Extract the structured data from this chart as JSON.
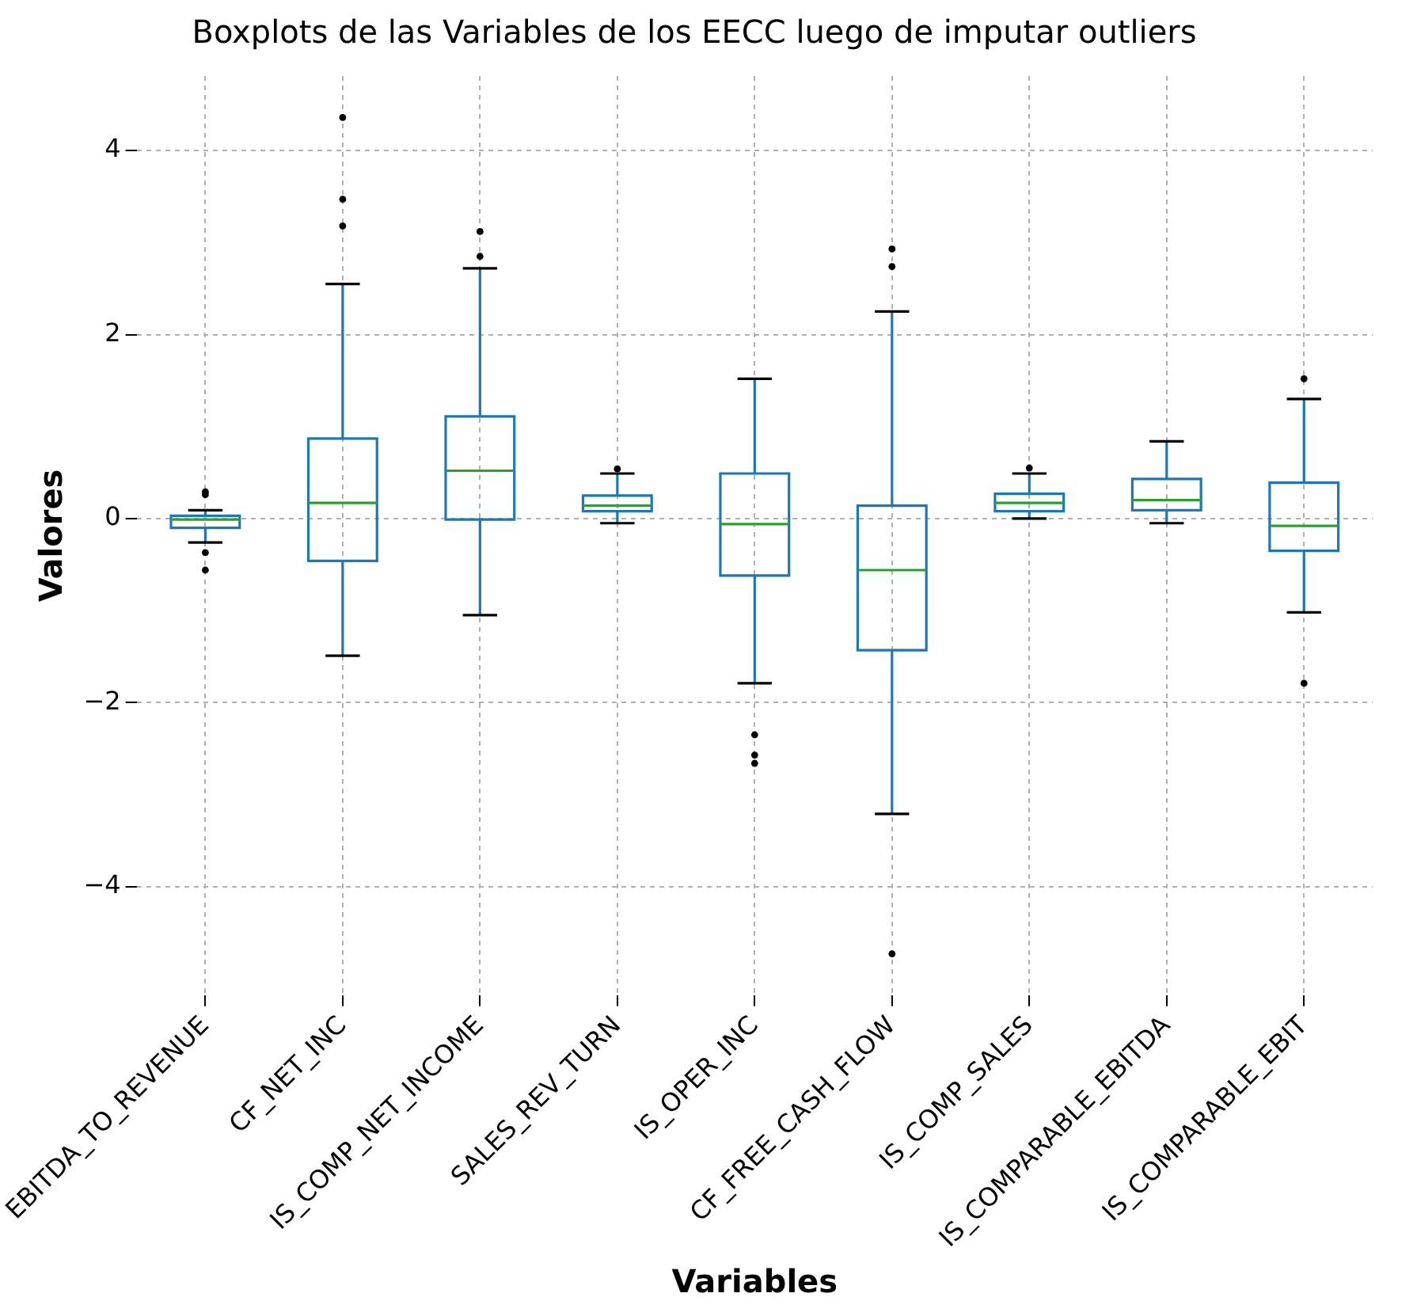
{
  "chart_data": {
    "type": "box",
    "title": "Boxplots de las Variables de los EECC luego de imputar outliers",
    "xlabel": "Variables",
    "ylabel": "Valores",
    "categories": [
      "EBITDA_TO_REVENUE",
      "CF_NET_INC",
      "IS_COMP_NET_INCOME",
      "SALES_REV_TURN",
      "IS_OPER_INC",
      "CF_FREE_CASH_FLOW",
      "IS_COMP_SALES",
      "IS_COMPARABLE_EBITDA",
      "IS_COMPARABLE_EBIT"
    ],
    "color": "#1f77b4",
    "boxes": [
      {
        "low": -0.26,
        "q1": -0.1,
        "median": -0.01,
        "q3": 0.03,
        "high": 0.09,
        "outliers": [
          0.29,
          0.26,
          -0.37,
          -0.56
        ]
      },
      {
        "low": -1.49,
        "q1": -0.46,
        "median": 0.17,
        "q3": 0.87,
        "high": 2.55,
        "outliers": [
          4.36,
          3.47,
          3.18
        ]
      },
      {
        "low": -1.05,
        "q1": -0.01,
        "median": 0.52,
        "q3": 1.11,
        "high": 2.72,
        "outliers": [
          3.12,
          2.85
        ]
      },
      {
        "low": -0.05,
        "q1": 0.08,
        "median": 0.14,
        "q3": 0.25,
        "high": 0.49,
        "outliers": [
          0.54
        ]
      },
      {
        "low": -1.79,
        "q1": -0.62,
        "median": -0.06,
        "q3": 0.49,
        "high": 1.52,
        "outliers": [
          -2.35,
          -2.57,
          -2.66
        ]
      },
      {
        "low": -3.21,
        "q1": -1.43,
        "median": -0.56,
        "q3": 0.14,
        "high": 2.25,
        "outliers": [
          2.93,
          2.74,
          -4.73
        ]
      },
      {
        "low": 0.0,
        "q1": 0.08,
        "median": 0.17,
        "q3": 0.27,
        "high": 0.49,
        "outliers": [
          0.55
        ]
      },
      {
        "low": -0.05,
        "q1": 0.09,
        "median": 0.2,
        "q3": 0.43,
        "high": 0.84
      },
      {
        "low": -1.02,
        "q1": -0.35,
        "median": -0.08,
        "q3": 0.39,
        "high": 1.3,
        "outliers": [
          1.52,
          -1.79
        ]
      }
    ],
    "ylim": [
      -5.18,
      4.81
    ],
    "yticks": [
      {
        "value": -4,
        "label": "−4"
      },
      {
        "value": -2,
        "label": "−2"
      },
      0,
      2,
      4
    ],
    "grid": true,
    "legend": false
  }
}
